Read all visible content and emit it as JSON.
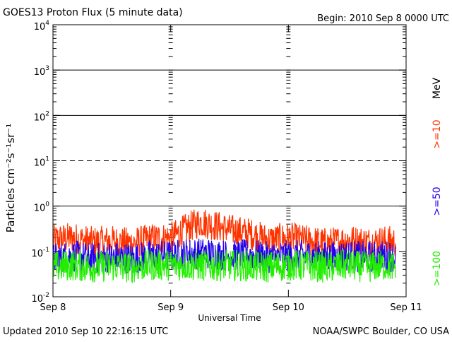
{
  "title": "GOES13 Proton Flux (5 minute data)",
  "begin_label": "Begin: 2010 Sep 8 0000 UTC",
  "updated_label": "Updated 2010 Sep 10 22:16:15 UTC",
  "credit_label": "NOAA/SWPC Boulder, CO USA",
  "chart_data": {
    "type": "line",
    "title": "GOES13 Proton Flux (5 minute data)",
    "xlabel": "Universal Time",
    "ylabel": "Particles cm⁻²s⁻¹sr⁻¹",
    "yscale": "log",
    "ylim": [
      0.01,
      10000
    ],
    "xlim_hours": [
      0,
      72
    ],
    "x_ticks": [
      {
        "label": "Sep 8",
        "hour": 0
      },
      {
        "label": "Sep 9",
        "hour": 24
      },
      {
        "label": "Sep 10",
        "hour": 48
      },
      {
        "label": "Sep 11",
        "hour": 72
      }
    ],
    "y_ticks": [
      {
        "base": "10",
        "exp": "-2",
        "value": 0.01
      },
      {
        "base": "10",
        "exp": "-1",
        "value": 0.1
      },
      {
        "base": "10",
        "exp": "0",
        "value": 1
      },
      {
        "base": "10",
        "exp": "1",
        "value": 10
      },
      {
        "base": "10",
        "exp": "2",
        "value": 100
      },
      {
        "base": "10",
        "exp": "3",
        "value": 1000
      },
      {
        "base": "10",
        "exp": "4",
        "value": 10000
      }
    ],
    "threshold_lines": [
      {
        "value": 1,
        "style": "solid"
      },
      {
        "value": 10,
        "style": "dashed"
      },
      {
        "value": 100,
        "style": "solid"
      },
      {
        "value": 1000,
        "style": "solid"
      }
    ],
    "legend_unit": "MeV",
    "series": [
      {
        "name": ">=10",
        "color": "#ff3300",
        "hours": [
          0,
          4,
          8,
          12,
          16,
          20,
          24,
          28,
          30,
          32,
          36,
          40,
          44,
          48,
          52,
          56,
          60,
          64,
          68,
          70
        ],
        "flux": [
          0.18,
          0.2,
          0.16,
          0.17,
          0.15,
          0.19,
          0.2,
          0.35,
          0.45,
          0.4,
          0.3,
          0.25,
          0.18,
          0.2,
          0.17,
          0.15,
          0.18,
          0.16,
          0.17,
          0.16
        ]
      },
      {
        "name": ">=50",
        "color": "#2200ee",
        "hours": [
          0,
          4,
          8,
          12,
          16,
          20,
          24,
          28,
          32,
          36,
          40,
          44,
          48,
          52,
          56,
          60,
          64,
          68,
          70
        ],
        "flux": [
          0.07,
          0.08,
          0.07,
          0.075,
          0.07,
          0.08,
          0.08,
          0.09,
          0.09,
          0.08,
          0.085,
          0.075,
          0.08,
          0.08,
          0.075,
          0.08,
          0.075,
          0.08,
          0.075
        ]
      },
      {
        "name": ">=100",
        "color": "#22ee00",
        "hours": [
          0,
          4,
          8,
          12,
          16,
          20,
          24,
          28,
          32,
          36,
          40,
          44,
          48,
          52,
          56,
          60,
          64,
          68,
          70
        ],
        "flux": [
          0.045,
          0.05,
          0.045,
          0.048,
          0.045,
          0.05,
          0.05,
          0.05,
          0.048,
          0.05,
          0.048,
          0.045,
          0.05,
          0.048,
          0.045,
          0.05,
          0.045,
          0.05,
          0.045
        ]
      }
    ]
  }
}
